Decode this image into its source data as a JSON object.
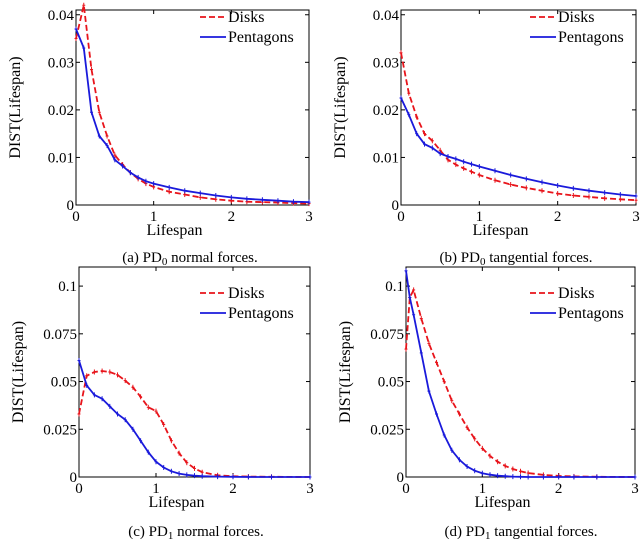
{
  "chart_data": [
    {
      "id": "a",
      "type": "line",
      "caption": {
        "prefix": "(a) PD",
        "sub": "0",
        "suffix": " normal forces."
      },
      "xlabel": "Lifespan",
      "ylabel": "DIST(Lifespan)",
      "xlim": [
        0,
        3
      ],
      "ylim": [
        0,
        0.041
      ],
      "xticks": [
        0,
        1,
        2,
        3
      ],
      "xtick_labels": [
        "0",
        "1",
        "2",
        "3"
      ],
      "yticks": [
        0,
        0.01,
        0.02,
        0.03,
        0.04
      ],
      "ytick_labels": [
        "0",
        "0.01",
        "0.02",
        "0.03",
        "0.04"
      ],
      "grid": false,
      "legend": "top-right",
      "series": [
        {
          "name": "Disks",
          "color": "#e8141b",
          "dash": "dashed",
          "x": [
            0,
            0.1,
            0.2,
            0.3,
            0.4,
            0.5,
            0.6,
            0.7,
            0.8,
            0.9,
            1.0,
            1.2,
            1.4,
            1.6,
            1.8,
            2.0,
            2.2,
            2.4,
            2.6,
            2.8,
            3.0
          ],
          "y": [
            0.035,
            0.042,
            0.0285,
            0.0195,
            0.0145,
            0.0105,
            0.0085,
            0.0068,
            0.0055,
            0.0045,
            0.0038,
            0.0028,
            0.0022,
            0.0016,
            0.0012,
            0.0009,
            0.0007,
            0.0006,
            0.0005,
            0.0004,
            0.0003
          ]
        },
        {
          "name": "Pentagons",
          "color": "#1a1adb",
          "dash": "solid",
          "x": [
            0,
            0.1,
            0.2,
            0.3,
            0.4,
            0.5,
            0.6,
            0.7,
            0.8,
            0.9,
            1.0,
            1.2,
            1.4,
            1.6,
            1.8,
            2.0,
            2.2,
            2.4,
            2.6,
            2.8,
            3.0
          ],
          "y": [
            0.037,
            0.033,
            0.0195,
            0.0145,
            0.0125,
            0.0095,
            0.0082,
            0.0068,
            0.0058,
            0.005,
            0.0045,
            0.0037,
            0.003,
            0.0025,
            0.002,
            0.0016,
            0.0013,
            0.0011,
            0.0009,
            0.0007,
            0.0006
          ]
        }
      ]
    },
    {
      "id": "b",
      "type": "line",
      "caption": {
        "prefix": "(b) PD",
        "sub": "0",
        "suffix": " tangential forces."
      },
      "xlabel": "Lifespan",
      "ylabel": "DIST(Lifespan)",
      "xlim": [
        0,
        3
      ],
      "ylim": [
        0,
        0.041
      ],
      "xticks": [
        0,
        1,
        2,
        3
      ],
      "xtick_labels": [
        "0",
        "1",
        "2",
        "3"
      ],
      "yticks": [
        0,
        0.01,
        0.02,
        0.03,
        0.04
      ],
      "ytick_labels": [
        "0",
        "0.01",
        "0.02",
        "0.03",
        "0.04"
      ],
      "grid": false,
      "legend": "top-right",
      "series": [
        {
          "name": "Disks",
          "color": "#e8141b",
          "dash": "dashed",
          "x": [
            0,
            0.1,
            0.2,
            0.3,
            0.4,
            0.5,
            0.6,
            0.7,
            0.8,
            0.9,
            1.0,
            1.2,
            1.4,
            1.6,
            1.8,
            2.0,
            2.2,
            2.4,
            2.6,
            2.8,
            3.0
          ],
          "y": [
            0.032,
            0.0235,
            0.0185,
            0.015,
            0.0135,
            0.0115,
            0.0095,
            0.0085,
            0.0077,
            0.007,
            0.0063,
            0.0052,
            0.0043,
            0.0036,
            0.003,
            0.0024,
            0.002,
            0.0017,
            0.0014,
            0.0012,
            0.001
          ]
        },
        {
          "name": "Pentagons",
          "color": "#1a1adb",
          "dash": "solid",
          "x": [
            0,
            0.1,
            0.2,
            0.3,
            0.4,
            0.5,
            0.6,
            0.7,
            0.8,
            0.9,
            1.0,
            1.2,
            1.4,
            1.6,
            1.8,
            2.0,
            2.2,
            2.4,
            2.6,
            2.8,
            3.0
          ],
          "y": [
            0.0225,
            0.019,
            0.015,
            0.0128,
            0.012,
            0.0108,
            0.0102,
            0.0097,
            0.0091,
            0.0086,
            0.0081,
            0.0072,
            0.0063,
            0.0055,
            0.0048,
            0.0041,
            0.0035,
            0.003,
            0.0026,
            0.0022,
            0.0019
          ]
        }
      ]
    },
    {
      "id": "c",
      "type": "line",
      "caption": {
        "prefix": "(c) PD",
        "sub": "1",
        "suffix": " normal forces."
      },
      "xlabel": "Lifespan",
      "ylabel": "DIST(Lifespan)",
      "xlim": [
        0,
        3
      ],
      "ylim": [
        0,
        0.11
      ],
      "xticks": [
        0,
        1,
        2,
        3
      ],
      "xtick_labels": [
        "0",
        "1",
        "2",
        "3"
      ],
      "yticks": [
        0,
        0.025,
        0.05,
        0.075,
        0.1
      ],
      "ytick_labels": [
        "0",
        "0.025",
        "0.05",
        "0.075",
        "0.1"
      ],
      "grid": false,
      "legend": "top-right",
      "series": [
        {
          "name": "Disks",
          "color": "#e8141b",
          "dash": "dashed",
          "x": [
            0,
            0.1,
            0.2,
            0.3,
            0.4,
            0.5,
            0.6,
            0.7,
            0.8,
            0.9,
            1.0,
            1.1,
            1.2,
            1.3,
            1.4,
            1.5,
            1.6,
            1.8,
            2.0,
            2.2,
            2.5,
            3.0
          ],
          "y": [
            0.033,
            0.053,
            0.055,
            0.0555,
            0.055,
            0.0535,
            0.0505,
            0.047,
            0.042,
            0.0365,
            0.0345,
            0.0275,
            0.019,
            0.0125,
            0.0075,
            0.0045,
            0.0025,
            0.0009,
            0.0004,
            0.0002,
            0.0001,
            0
          ]
        },
        {
          "name": "Pentagons",
          "color": "#1a1adb",
          "dash": "solid",
          "x": [
            0,
            0.1,
            0.2,
            0.3,
            0.4,
            0.5,
            0.6,
            0.7,
            0.8,
            0.9,
            1.0,
            1.1,
            1.2,
            1.3,
            1.4,
            1.5,
            1.6,
            1.8,
            2.0,
            2.2,
            2.5,
            3.0
          ],
          "y": [
            0.061,
            0.048,
            0.043,
            0.041,
            0.037,
            0.033,
            0.03,
            0.025,
            0.019,
            0.013,
            0.008,
            0.005,
            0.003,
            0.0018,
            0.0011,
            0.0007,
            0.0004,
            0.0002,
            0.0001,
            0,
            0,
            0
          ]
        }
      ]
    },
    {
      "id": "d",
      "type": "line",
      "caption": {
        "prefix": "(d) PD",
        "sub": "1",
        "suffix": " tangential forces."
      },
      "xlabel": "Lifespan",
      "ylabel": "DIST(Lifespan)",
      "xlim": [
        0,
        3
      ],
      "ylim": [
        0,
        0.11
      ],
      "xticks": [
        0,
        1,
        2,
        3
      ],
      "xtick_labels": [
        "0",
        "1",
        "2",
        "3"
      ],
      "yticks": [
        0,
        0.025,
        0.05,
        0.075,
        0.1
      ],
      "ytick_labels": [
        "0",
        "0.025",
        "0.05",
        "0.075",
        "0.1"
      ],
      "grid": false,
      "legend": "top-right",
      "series": [
        {
          "name": "Disks",
          "color": "#e8141b",
          "dash": "dashed",
          "x": [
            0,
            0.05,
            0.1,
            0.2,
            0.3,
            0.4,
            0.5,
            0.6,
            0.7,
            0.8,
            0.9,
            1.0,
            1.1,
            1.2,
            1.3,
            1.4,
            1.5,
            1.6,
            1.8,
            2.0,
            2.2,
            2.5,
            3.0
          ],
          "y": [
            0.067,
            0.094,
            0.098,
            0.083,
            0.07,
            0.06,
            0.05,
            0.04,
            0.033,
            0.026,
            0.02,
            0.015,
            0.011,
            0.008,
            0.0058,
            0.0042,
            0.003,
            0.0021,
            0.0011,
            0.0006,
            0.0003,
            0.0001,
            0
          ]
        },
        {
          "name": "Pentagons",
          "color": "#1a1adb",
          "dash": "solid",
          "x": [
            0,
            0.05,
            0.1,
            0.2,
            0.3,
            0.4,
            0.5,
            0.6,
            0.7,
            0.8,
            0.9,
            1.0,
            1.1,
            1.2,
            1.3,
            1.4,
            1.5,
            1.6,
            1.8,
            2.0,
            2.2,
            2.5,
            3.0
          ],
          "y": [
            0.108,
            0.094,
            0.085,
            0.065,
            0.045,
            0.033,
            0.022,
            0.014,
            0.009,
            0.0055,
            0.0033,
            0.002,
            0.0012,
            0.0007,
            0.0004,
            0.0002,
            0.0001,
            0,
            0,
            0,
            0,
            0,
            0
          ]
        }
      ]
    }
  ]
}
